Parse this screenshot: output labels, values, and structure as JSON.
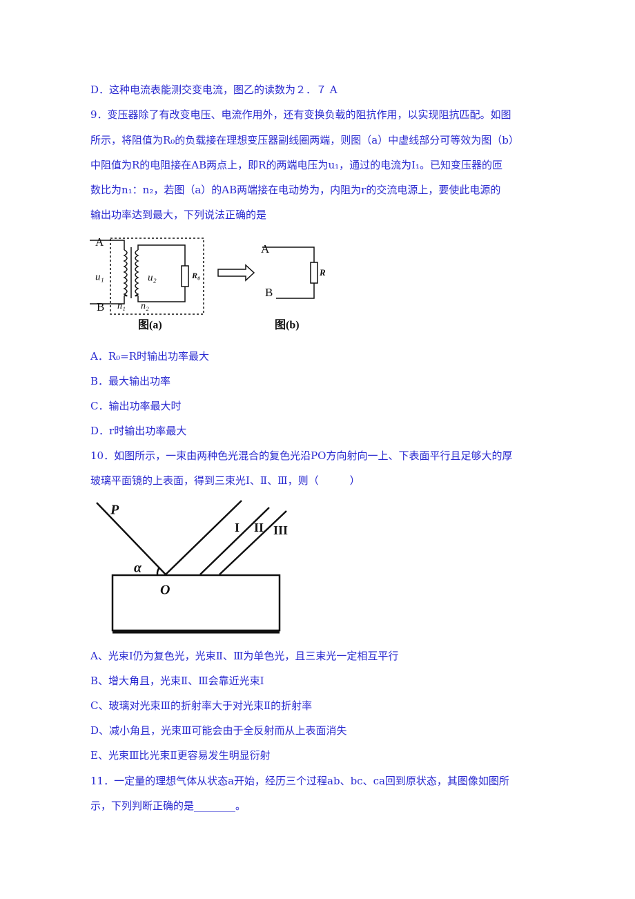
{
  "intro_lines": [
    "D．这种电流表能测交变电流，图乙的读数为２．７ A",
    "9．变压器除了有改变电压、电流作用外，还有变换负载的阻抗作用，以实现阻抗匹配。如图",
    "所示，将阻值为R₀的负载接在理想变压器副线圈两端，则图（a）中虚线部分可等效为图（b）",
    "中阻值为R的电阻接在AB两点上，即R的两端电压为u₁，通过的电流为I₁。已知变压器的匝",
    "数比为n₁：n₂，若图（a）的AB两端接在电动势为，内阻为r的交流电源上，要使此电源的",
    "输出功率达到最大，下列说法正确的是"
  ],
  "figure_9": {
    "a": {
      "A": "A",
      "B": "B",
      "u1": "u₁",
      "u2": "u₂",
      "n1": "n₁",
      "n2": "n₂",
      "R0": "R₀",
      "caption": "图(a)"
    },
    "b": {
      "A": "A",
      "B": "B",
      "R": "R",
      "caption": "图(b)"
    }
  },
  "options_9": [
    "A．R₀=R时输出功率最大",
    "B．最大输出功率",
    "C．输出功率最大时",
    "D．r时输出功率最大"
  ],
  "question_10": [
    "10．如图所示，一束由两种色光混合的复色光沿PO方向射向一上、下表面平行且足够大的厚",
    "玻璃平面镜的上表面，得到三束光Ⅰ、Ⅱ、Ⅲ，则（　　　）"
  ],
  "figure_10": {
    "P": "P",
    "O": "O",
    "alpha": "α",
    "I": "I",
    "II": "II",
    "III": "III"
  },
  "options_10": [
    "A、光束Ⅰ仍为复色光，光束Ⅱ、Ⅲ为单色光，且三束光一定相互平行",
    "B、增大角且，光束Ⅱ、Ⅲ会靠近光束Ⅰ",
    "C、玻璃对光束Ⅲ的折射率大于对光束Ⅱ的折射率",
    "D、减小角且，光束Ⅲ可能会由于全反射而从上表面消失",
    "E、光束Ⅲ比光束Ⅱ更容易发生明显衍射"
  ],
  "question_11": [
    "11．一定量的理想气体从状态a开始，经历三个过程ab、bc、ca回到原状态，其图像如图所",
    "示，下列判断正确的是________。"
  ]
}
